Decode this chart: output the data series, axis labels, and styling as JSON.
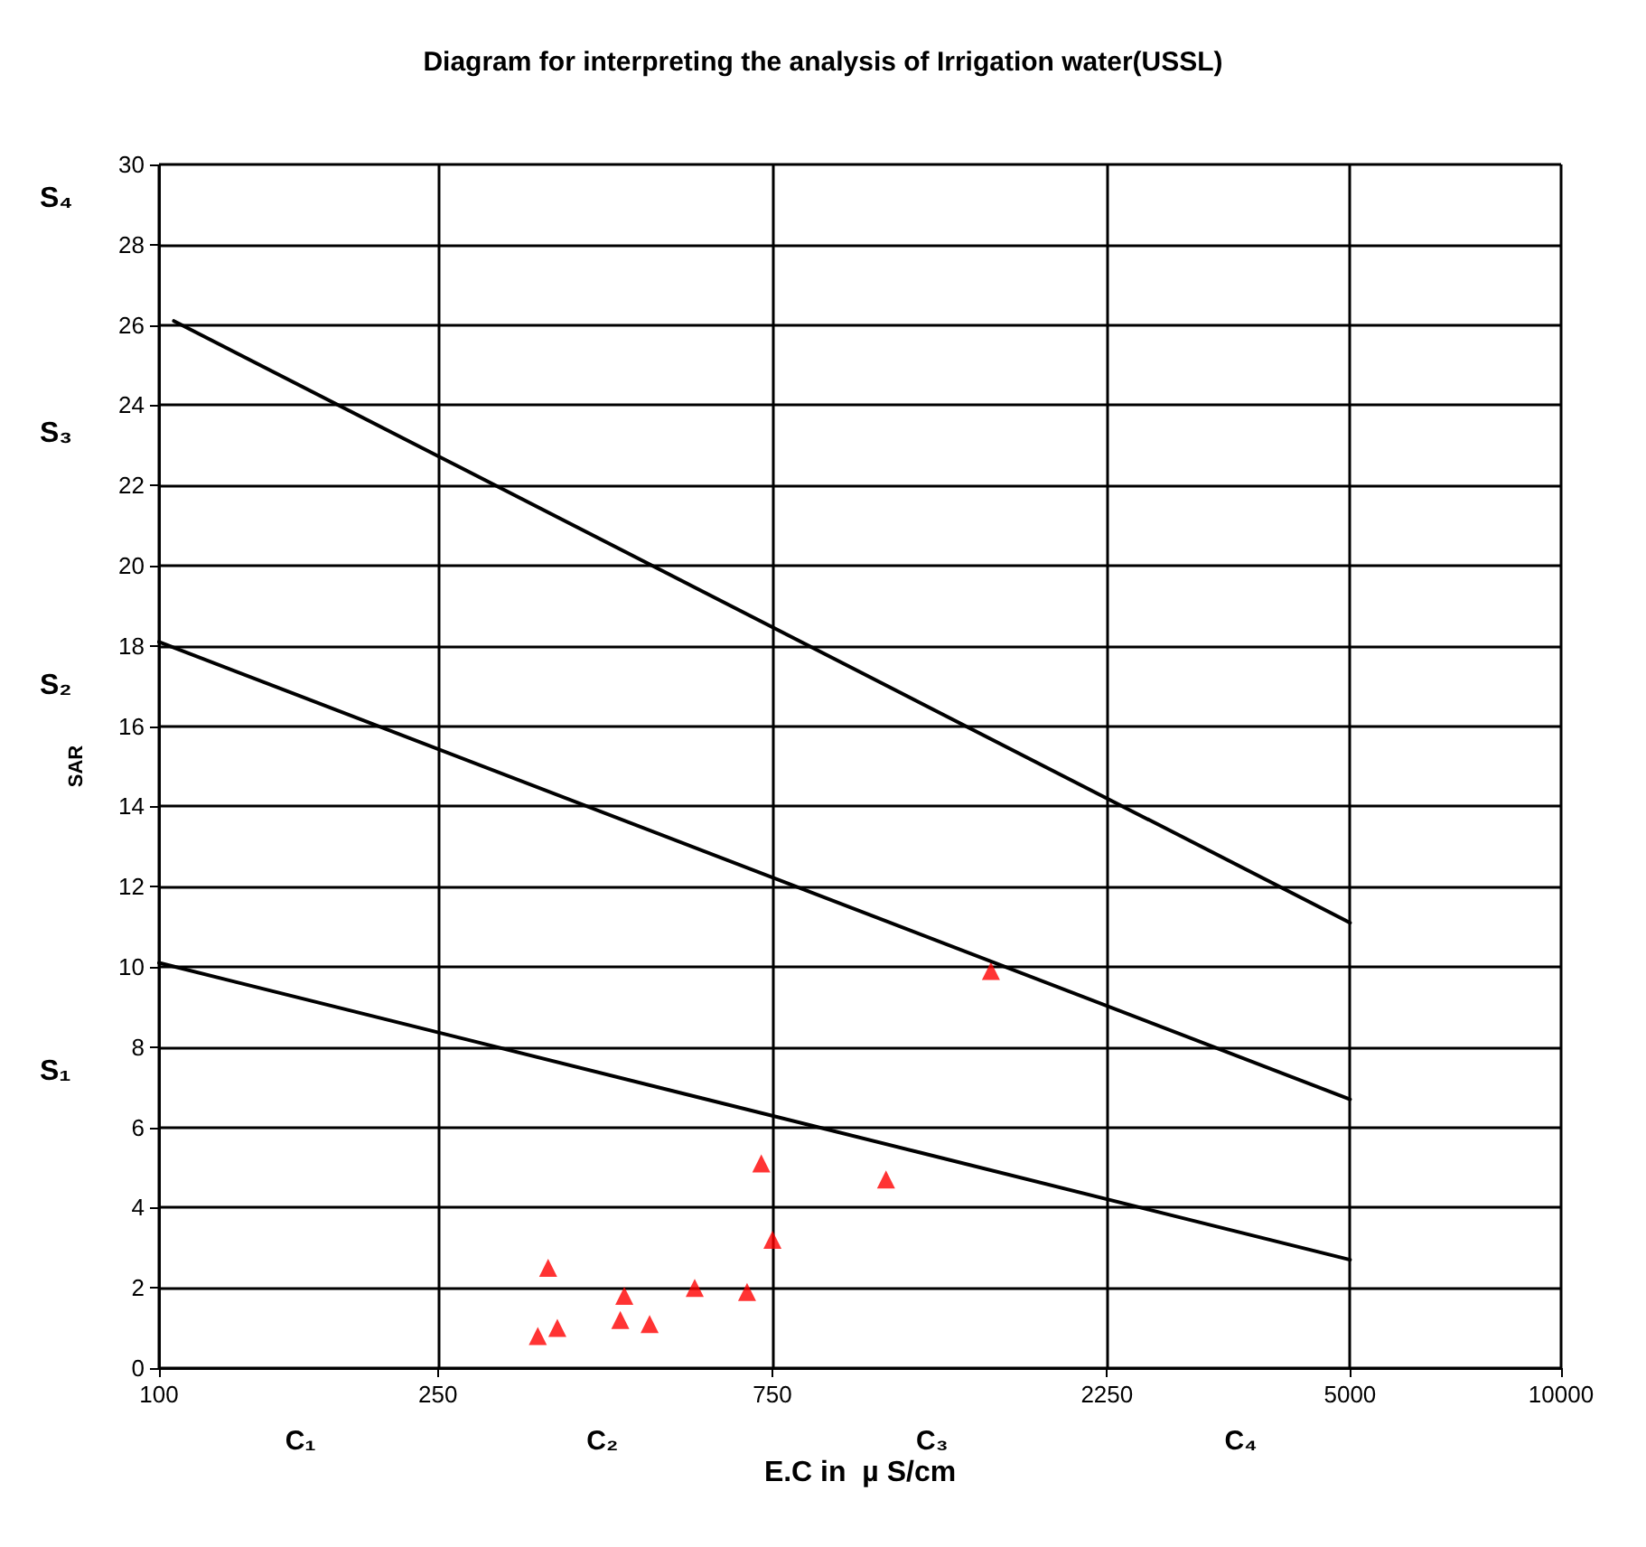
{
  "chart_data": {
    "type": "scatter",
    "title": "Diagram for interpreting the analysis of Irrigation water(USSL)",
    "xlabel": "E.C in  µ S/cm",
    "ylabel": "SAR",
    "log": "x",
    "xlim": [
      100,
      10000
    ],
    "xticks": [
      100,
      250,
      750,
      2250,
      5000,
      10000
    ],
    "ylim": [
      0,
      30
    ],
    "yticks": [
      0,
      2,
      4,
      6,
      8,
      10,
      12,
      14,
      16,
      18,
      20,
      22,
      24,
      26,
      28,
      30
    ],
    "grid": true,
    "annotations": [
      "S₄",
      "S₃",
      "S₂",
      "S₁",
      "C₁",
      "C₂",
      "C₃",
      "C₄"
    ],
    "series": [
      {
        "type": "line",
        "color": "#000000",
        "marker": "none",
        "x": [
          105,
          5000
        ],
        "values": [
          26.1,
          11.1
        ]
      },
      {
        "type": "line",
        "color": "#000000",
        "marker": "none",
        "x": [
          100,
          5000
        ],
        "values": [
          18.1,
          6.7
        ]
      },
      {
        "type": "line",
        "color": "#000000",
        "marker": "none",
        "x": [
          100,
          5000
        ],
        "values": [
          10.1,
          2.7
        ]
      },
      {
        "color": "#ff0000",
        "marker": "triangle",
        "x": [
          359,
          347,
          370,
          461,
          455,
          501,
          581,
          690,
          723,
          750,
          1089,
          1537
        ],
        "values": [
          2.5,
          0.8,
          1.0,
          1.8,
          1.2,
          1.1,
          2.0,
          1.9,
          5.1,
          3.2,
          4.7,
          9.9
        ]
      }
    ]
  }
}
